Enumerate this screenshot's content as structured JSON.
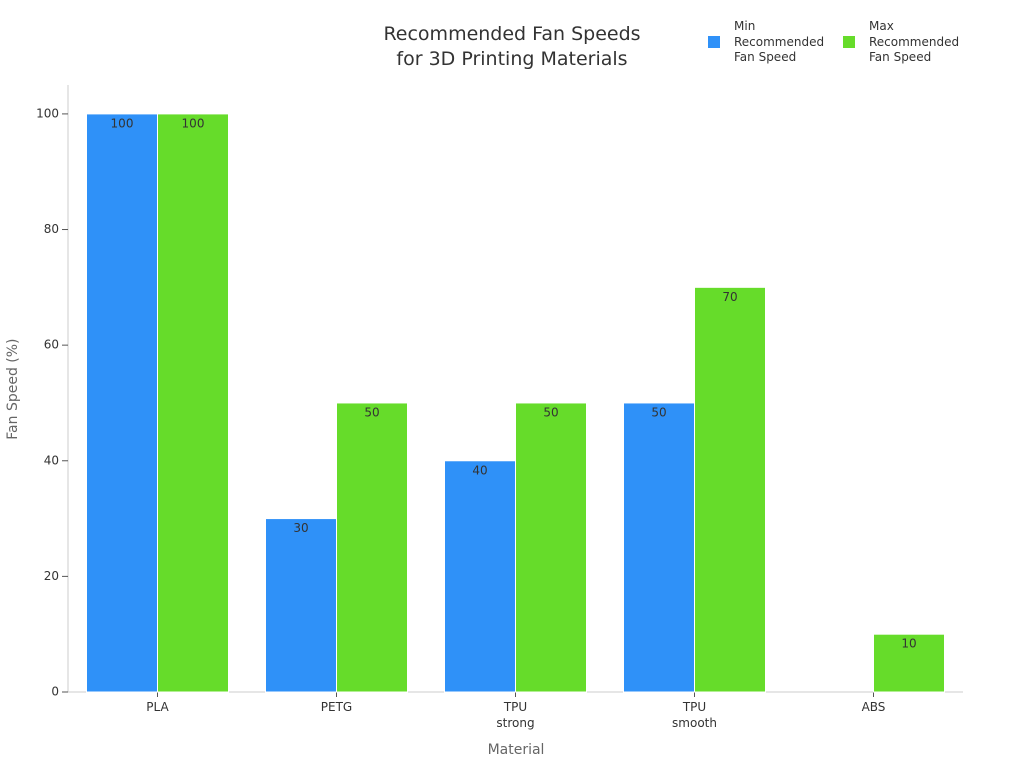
{
  "chart_data": {
    "type": "bar",
    "title": "Recommended Fan Speeds\nfor 3D Printing Materials",
    "x_label": "Material",
    "y_label": "Fan Speed (%)",
    "categories": [
      "PLA",
      "PETG",
      "TPU\nstrong",
      "TPU\nsmooth",
      "ABS"
    ],
    "series": [
      {
        "name": "Min Recommended Fan Speed",
        "color": "#2f91f8",
        "values": [
          100,
          30,
          40,
          50,
          null
        ]
      },
      {
        "name": "Max Recommended Fan Speed",
        "color": "#66dc2a",
        "values": [
          100,
          50,
          50,
          70,
          10
        ]
      }
    ],
    "ylim": [
      0,
      105
    ],
    "yticks": [
      0,
      20,
      40,
      60,
      80,
      100
    ],
    "legend": "top-right"
  }
}
